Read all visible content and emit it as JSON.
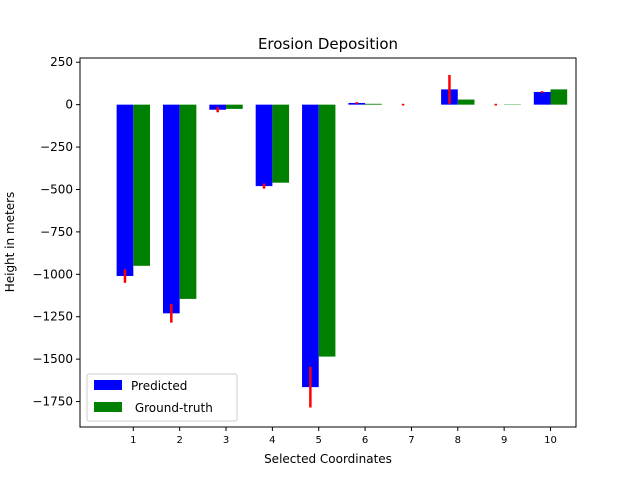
{
  "chart_data": {
    "type": "bar",
    "title": "Erosion Deposition",
    "xlabel": "Selected Coordinates",
    "ylabel": "Height in meters",
    "categories": [
      "1",
      "2",
      "3",
      "4",
      "5",
      "6",
      "7",
      "8",
      "9",
      "10"
    ],
    "series": [
      {
        "name": "Predicted",
        "color": "#0000ff",
        "values": [
          -1010,
          -1230,
          -30,
          -480,
          -1665,
          10,
          0,
          90,
          0,
          75
        ],
        "error": [
          40,
          55,
          15,
          15,
          120,
          5,
          5,
          85,
          5,
          5
        ]
      },
      {
        "name": " Ground-truth",
        "color": "#008000",
        "values": [
          -950,
          -1145,
          -25,
          -460,
          -1485,
          5,
          0,
          30,
          2,
          90
        ]
      }
    ],
    "error_color": "#ff0000",
    "ylim": [
      -1900,
      275
    ],
    "yticks": [
      250,
      0,
      -250,
      -500,
      -750,
      -1000,
      -1250,
      -1500,
      -1750
    ],
    "ytick_labels": [
      "250",
      "0",
      "−250",
      "−500",
      "−750",
      "−1000",
      "−1250",
      "−1500",
      "−1750"
    ],
    "legend": "lower-left",
    "grid": false
  }
}
